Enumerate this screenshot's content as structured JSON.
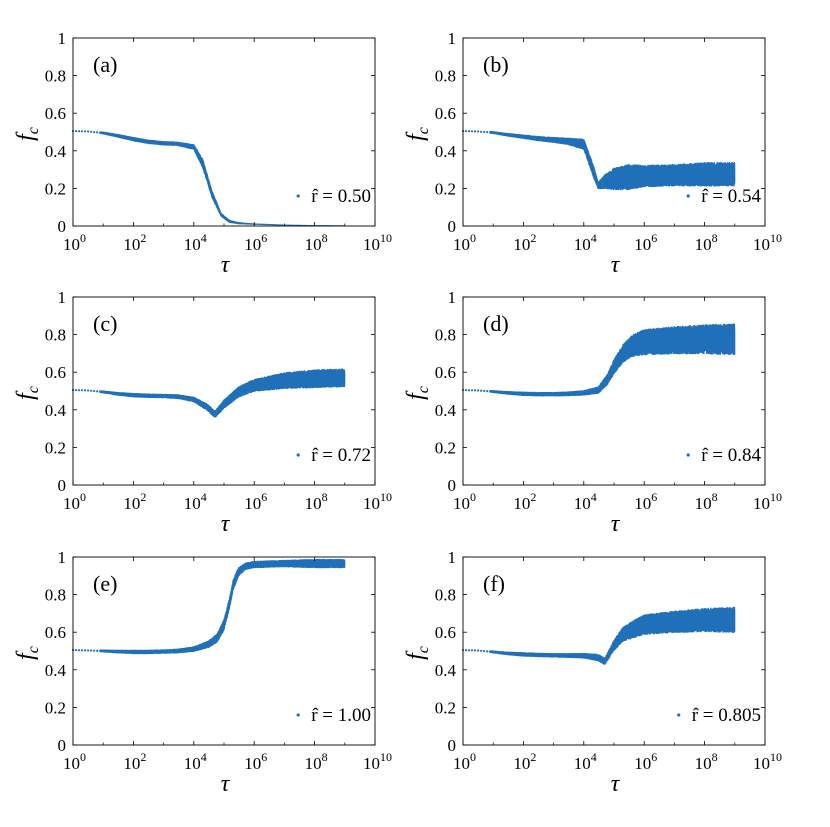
{
  "figure": {
    "series_color": "#1f70b8",
    "xlabel": "τ",
    "ylabel_main": "f",
    "ylabel_sub": "c",
    "x_tick_base": "10",
    "x_tick_exponents": [
      "0",
      "2",
      "4",
      "6",
      "8",
      "10"
    ],
    "y_tick_labels": [
      "0",
      "0.2",
      "0.4",
      "0.6",
      "0.8",
      "1"
    ]
  },
  "chart_data": [
    {
      "type": "scatter",
      "panel": "(a)",
      "title": "",
      "xlabel": "τ",
      "ylabel": "f_c",
      "x_scale": "log",
      "xlim": [
        1,
        10000000000
      ],
      "ylim": [
        0,
        1
      ],
      "legend": "r̂ = 0.50",
      "legend_location": "bottom-right",
      "series": [
        {
          "name": "r̂ = 0.50",
          "x": [
            1,
            3,
            10,
            30,
            100,
            300,
            1000,
            3000,
            10000,
            20000,
            40000,
            80000,
            150000,
            300000,
            1000000,
            10000000,
            100000000,
            1000000000
          ],
          "y": [
            0.505,
            0.503,
            0.495,
            0.48,
            0.462,
            0.448,
            0.44,
            0.437,
            0.42,
            0.33,
            0.17,
            0.06,
            0.025,
            0.015,
            0.01,
            0.005,
            0.003,
            0.002
          ],
          "spread": [
            0.003,
            0.005,
            0.008,
            0.01,
            0.012,
            0.012,
            0.012,
            0.012,
            0.015,
            0.025,
            0.02,
            0.01,
            0.008,
            0.006,
            0.004,
            0.003,
            0.002,
            0.002
          ]
        }
      ]
    },
    {
      "type": "scatter",
      "panel": "(b)",
      "title": "",
      "xlabel": "τ",
      "ylabel": "f_c",
      "x_scale": "log",
      "xlim": [
        1,
        10000000000
      ],
      "ylim": [
        0,
        1
      ],
      "legend": "r̂ = 0.54",
      "legend_location": "bottom-right",
      "series": [
        {
          "name": "r̂ = 0.54",
          "x": [
            1,
            3,
            10,
            30,
            100,
            300,
            1000,
            3000,
            10000,
            20000,
            30000,
            50000,
            100000,
            300000,
            1000000,
            10000000,
            100000000,
            1000000000
          ],
          "y": [
            0.505,
            0.503,
            0.497,
            0.485,
            0.475,
            0.465,
            0.458,
            0.45,
            0.435,
            0.3,
            0.215,
            0.235,
            0.25,
            0.26,
            0.265,
            0.27,
            0.275,
            0.275
          ],
          "spread": [
            0.003,
            0.005,
            0.008,
            0.01,
            0.012,
            0.014,
            0.016,
            0.02,
            0.03,
            0.035,
            0.02,
            0.04,
            0.06,
            0.07,
            0.06,
            0.06,
            0.065,
            0.065
          ]
        }
      ]
    },
    {
      "type": "scatter",
      "panel": "(c)",
      "title": "",
      "xlabel": "τ",
      "ylabel": "f_c",
      "x_scale": "log",
      "xlim": [
        1,
        10000000000
      ],
      "ylim": [
        0,
        1
      ],
      "legend": "r̂ = 0.72",
      "legend_location": "bottom-right",
      "series": [
        {
          "name": "r̂ = 0.72",
          "x": [
            1,
            3,
            10,
            30,
            100,
            300,
            1000,
            3000,
            10000,
            30000,
            50000,
            100000,
            300000,
            1000000,
            10000000,
            100000000,
            1000000000
          ],
          "y": [
            0.505,
            0.503,
            0.495,
            0.485,
            0.478,
            0.475,
            0.473,
            0.47,
            0.455,
            0.41,
            0.375,
            0.43,
            0.495,
            0.53,
            0.555,
            0.565,
            0.57
          ],
          "spread": [
            0.003,
            0.005,
            0.008,
            0.01,
            0.012,
            0.012,
            0.012,
            0.013,
            0.015,
            0.02,
            0.02,
            0.025,
            0.03,
            0.035,
            0.045,
            0.05,
            0.05
          ]
        }
      ]
    },
    {
      "type": "scatter",
      "panel": "(d)",
      "title": "",
      "xlabel": "τ",
      "ylabel": "f_c",
      "x_scale": "log",
      "xlim": [
        1,
        10000000000
      ],
      "ylim": [
        0,
        1
      ],
      "legend": "r̂ = 0.84",
      "legend_location": "bottom-right",
      "series": [
        {
          "name": "r̂ = 0.84",
          "x": [
            1,
            3,
            10,
            30,
            100,
            300,
            1000,
            3000,
            10000,
            30000,
            60000,
            100000,
            200000,
            400000,
            1000000,
            10000000,
            100000000,
            1000000000
          ],
          "y": [
            0.505,
            0.503,
            0.497,
            0.49,
            0.485,
            0.483,
            0.483,
            0.485,
            0.49,
            0.505,
            0.56,
            0.63,
            0.7,
            0.74,
            0.76,
            0.77,
            0.775,
            0.775
          ],
          "spread": [
            0.003,
            0.005,
            0.008,
            0.01,
            0.012,
            0.012,
            0.012,
            0.013,
            0.015,
            0.02,
            0.03,
            0.04,
            0.05,
            0.06,
            0.07,
            0.075,
            0.08,
            0.085
          ]
        }
      ]
    },
    {
      "type": "scatter",
      "panel": "(e)",
      "title": "",
      "xlabel": "τ",
      "ylabel": "f_c",
      "x_scale": "log",
      "xlim": [
        1,
        10000000000
      ],
      "ylim": [
        0,
        1
      ],
      "legend": "r̂ = 1.00",
      "legend_location": "bottom-right",
      "series": [
        {
          "name": "r̂ = 1.00",
          "x": [
            1,
            3,
            10,
            30,
            100,
            300,
            1000,
            3000,
            10000,
            30000,
            60000,
            100000,
            150000,
            200000,
            300000,
            500000,
            1000000,
            10000000,
            100000000,
            1000000000
          ],
          "y": [
            0.505,
            0.503,
            0.5,
            0.497,
            0.495,
            0.495,
            0.497,
            0.5,
            0.51,
            0.535,
            0.57,
            0.64,
            0.75,
            0.85,
            0.92,
            0.95,
            0.96,
            0.965,
            0.965,
            0.965
          ],
          "spread": [
            0.003,
            0.005,
            0.008,
            0.01,
            0.012,
            0.012,
            0.012,
            0.013,
            0.015,
            0.02,
            0.025,
            0.03,
            0.03,
            0.03,
            0.025,
            0.02,
            0.02,
            0.02,
            0.025,
            0.025
          ]
        }
      ]
    },
    {
      "type": "scatter",
      "panel": "(f)",
      "title": "",
      "xlabel": "τ",
      "ylabel": "f_c",
      "x_scale": "log",
      "xlim": [
        1,
        10000000000
      ],
      "ylim": [
        0,
        1
      ],
      "legend": "r̂ = 0.805",
      "legend_location": "bottom-right",
      "series": [
        {
          "name": "r̂ = 0.805",
          "x": [
            1,
            3,
            10,
            30,
            100,
            300,
            1000,
            3000,
            10000,
            30000,
            50000,
            100000,
            200000,
            500000,
            1000000,
            10000000,
            100000000,
            1000000000
          ],
          "y": [
            0.505,
            0.503,
            0.495,
            0.487,
            0.482,
            0.479,
            0.477,
            0.476,
            0.475,
            0.465,
            0.445,
            0.53,
            0.59,
            0.62,
            0.64,
            0.655,
            0.665,
            0.665
          ],
          "spread": [
            0.003,
            0.005,
            0.008,
            0.01,
            0.012,
            0.012,
            0.012,
            0.013,
            0.015,
            0.02,
            0.02,
            0.03,
            0.04,
            0.05,
            0.055,
            0.06,
            0.065,
            0.07
          ]
        }
      ]
    }
  ]
}
